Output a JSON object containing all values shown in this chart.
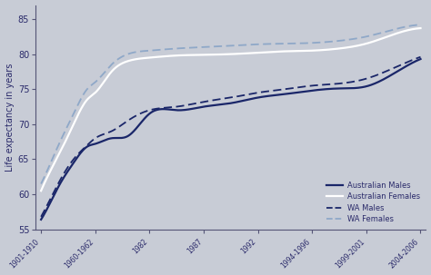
{
  "background_color": "#c8ccd6",
  "navy": "#1a2669",
  "white_line": "#ffffff",
  "wa_males_color": "#1a2669",
  "wa_females_color": "#8fa8c8",
  "ylabel": "Life expectancy in years",
  "ylim": [
    55,
    87
  ],
  "yticks": [
    55,
    60,
    65,
    70,
    75,
    80,
    85
  ],
  "xtick_labels": [
    "1901-1910",
    "1960-1962",
    "1982",
    "1987",
    "1992",
    "1994-1996",
    "1999-2001",
    "2004-2006"
  ],
  "legend_labels": [
    "Australian Males",
    "Australian Females",
    "WA Males",
    "WA Females"
  ],
  "tick_positions": [
    0,
    1,
    2,
    3,
    4,
    5,
    6,
    7
  ]
}
